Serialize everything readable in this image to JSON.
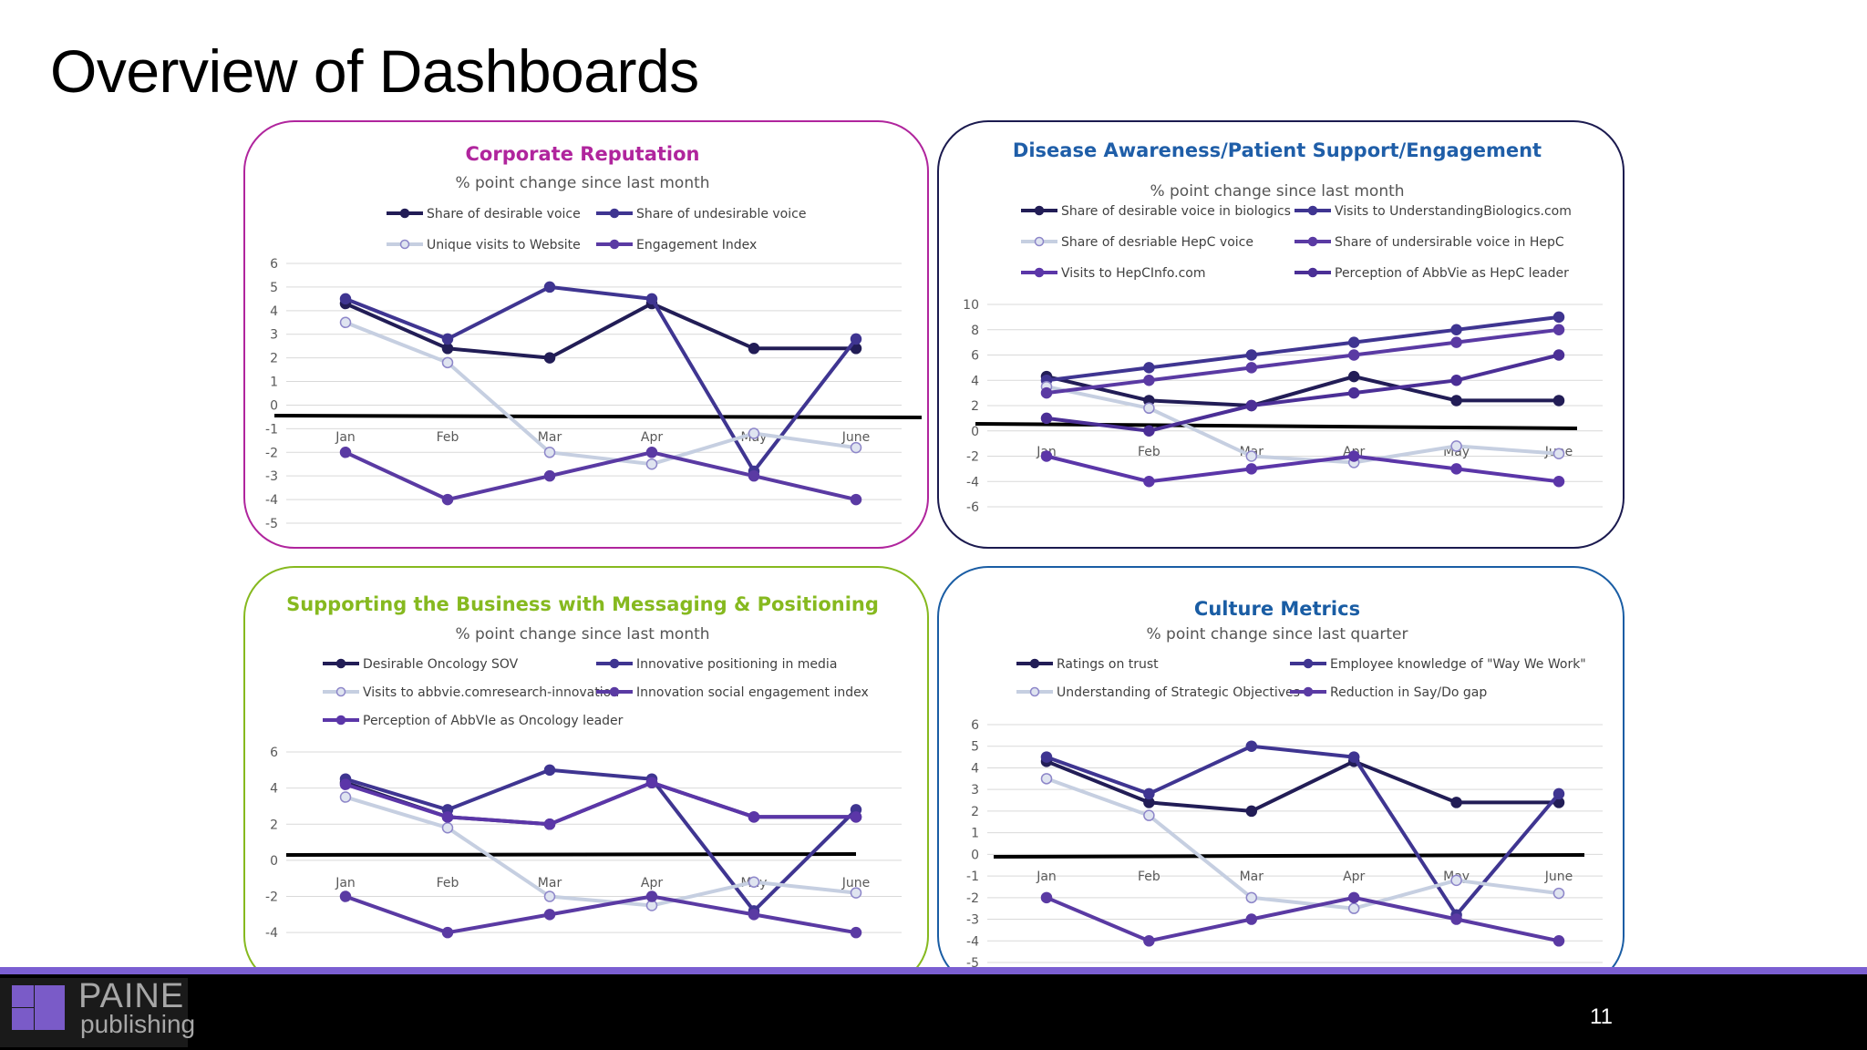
{
  "page": {
    "title": "Overview of Dashboards",
    "page_number": "11"
  },
  "logo": {
    "line1": "PAINE",
    "line2": "publishing"
  },
  "colors": {
    "series": [
      "#221d56",
      "#3f3591",
      "#c6cfe1",
      "#5a3aa3",
      "#5b36a8",
      "#4b2f96"
    ],
    "axis_zero": "#000000",
    "grid": "#d9d9d9",
    "footer_accent": "#7b5fd2"
  },
  "chart_data": [
    {
      "type": "line",
      "title": "Corporate Reputation",
      "subtitle": "% point change since last month",
      "title_color": "#b0259d",
      "categories": [
        "Jan",
        "Feb",
        "Mar",
        "Apr",
        "May",
        "June"
      ],
      "ylim": [
        -5,
        6
      ],
      "yticks": [
        6,
        5,
        4,
        3,
        2,
        1,
        0,
        -1,
        -2,
        -3,
        -4,
        -5
      ],
      "grid": true,
      "legend_position": "top",
      "series": [
        {
          "name": "Share of desirable voice",
          "values": [
            4.3,
            2.4,
            2.0,
            4.3,
            2.4,
            2.4
          ]
        },
        {
          "name": "Share of undesirable voice",
          "values": [
            4.5,
            2.8,
            5.0,
            4.5,
            -2.8,
            2.8
          ]
        },
        {
          "name": "Unique visits to Website",
          "values": [
            3.5,
            1.8,
            -2.0,
            -2.5,
            -1.2,
            -1.8
          ]
        },
        {
          "name": "Engagement Index",
          "values": [
            -2.0,
            -4.0,
            -3.0,
            -2.0,
            -3.0,
            -4.0
          ]
        }
      ]
    },
    {
      "type": "line",
      "title": "Disease Awareness/Patient Support/Engagement",
      "subtitle": "% point change since last month",
      "title_color": "#1f5ea8",
      "categories": [
        "Jan",
        "Feb",
        "Mar",
        "Apr",
        "May",
        "June"
      ],
      "ylim": [
        -6,
        10
      ],
      "yticks": [
        10,
        8,
        6,
        4,
        2,
        0,
        -2,
        -4,
        -6
      ],
      "grid": true,
      "legend_position": "top",
      "series": [
        {
          "name": "Share of desirable voice in biologics",
          "values": [
            4.3,
            2.4,
            2.0,
            4.3,
            2.4,
            2.4
          ]
        },
        {
          "name": "Visits to UnderstandingBiologics.com",
          "values": [
            4.0,
            5.0,
            6.0,
            7.0,
            8.0,
            9.0
          ]
        },
        {
          "name": "Share of desriable HepC voice",
          "values": [
            3.5,
            1.8,
            -2.0,
            -2.5,
            -1.2,
            -1.8
          ]
        },
        {
          "name": "Share of undersirable voice in HepC",
          "values": [
            3.0,
            4.0,
            5.0,
            6.0,
            7.0,
            8.0
          ]
        },
        {
          "name": "Visits to HepCInfo.com",
          "values": [
            -2.0,
            -4.0,
            -3.0,
            -2.0,
            -3.0,
            -4.0
          ]
        },
        {
          "name": "Perception of AbbVie as HepC leader",
          "values": [
            1.0,
            0.0,
            2.0,
            3.0,
            4.0,
            6.0
          ]
        }
      ]
    },
    {
      "type": "line",
      "title": "Supporting the Business with Messaging & Positioning",
      "subtitle": "% point change since last month",
      "title_color": "#86b91f",
      "categories": [
        "Jan",
        "Feb",
        "Mar",
        "Apr",
        "May",
        "June"
      ],
      "ylim": [
        -5,
        6
      ],
      "yticks": [
        6,
        4,
        2,
        0,
        -2,
        -4
      ],
      "grid": true,
      "legend_position": "top",
      "series": [
        {
          "name": "Desirable Oncology SOV",
          "values": [
            4.3,
            2.4,
            2.0,
            4.3,
            2.4,
            2.4
          ]
        },
        {
          "name": "Innovative positioning in media",
          "values": [
            4.5,
            2.8,
            5.0,
            4.5,
            -2.8,
            2.8
          ]
        },
        {
          "name": "Visits to abbvie.comresearch-innovation",
          "values": [
            3.5,
            1.8,
            -2.0,
            -2.5,
            -1.2,
            -1.8
          ]
        },
        {
          "name": "Innovation social engagement index",
          "values": [
            -2.0,
            -4.0,
            -3.0,
            -2.0,
            -3.0,
            -4.0
          ]
        },
        {
          "name": "Perception of AbbVIe as Oncology leader",
          "values": [
            4.2,
            2.4,
            2.0,
            4.3,
            2.4,
            2.4
          ]
        }
      ]
    },
    {
      "type": "line",
      "title": "Culture Metrics",
      "subtitle": "% point change since last quarter",
      "title_color": "#1a5da4",
      "categories": [
        "Jan",
        "Feb",
        "Mar",
        "Apr",
        "May",
        "June"
      ],
      "ylim": [
        -5,
        6
      ],
      "yticks": [
        6,
        5,
        4,
        3,
        2,
        1,
        0,
        -1,
        -2,
        -3,
        -4,
        -5
      ],
      "grid": true,
      "legend_position": "top",
      "series": [
        {
          "name": "Ratings on trust",
          "values": [
            4.3,
            2.4,
            2.0,
            4.3,
            2.4,
            2.4
          ]
        },
        {
          "name": "Employee knowledge of \"Way We Work\"",
          "values": [
            4.5,
            2.8,
            5.0,
            4.5,
            -2.8,
            2.8
          ]
        },
        {
          "name": "Understanding of Strategic Objectives",
          "values": [
            3.5,
            1.8,
            -2.0,
            -2.5,
            -1.2,
            -1.8
          ]
        },
        {
          "name": "Reduction in Say/Do gap",
          "values": [
            -2.0,
            -4.0,
            -3.0,
            -2.0,
            -3.0,
            -4.0
          ]
        }
      ]
    }
  ]
}
